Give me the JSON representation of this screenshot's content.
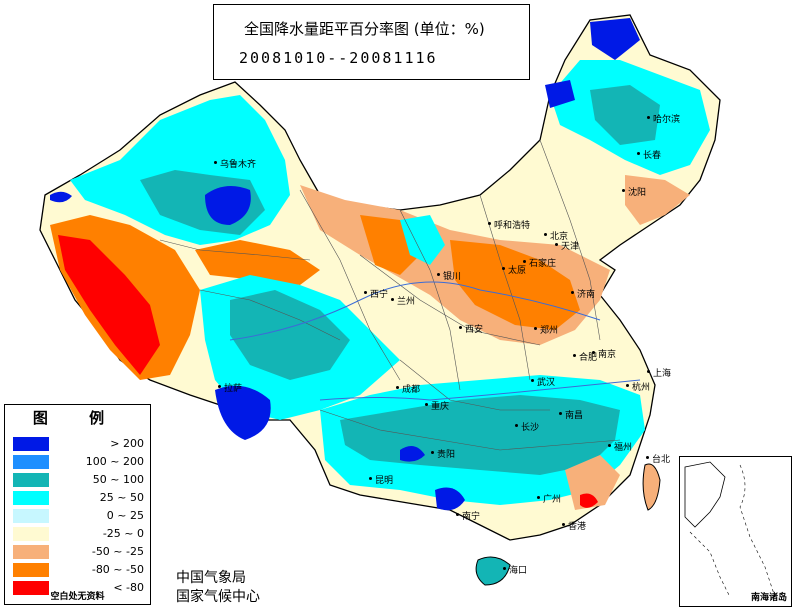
{
  "title": {
    "main": "全国降水量距平百分率图 (单位：%)",
    "date_range": "20081010--20081116"
  },
  "legend": {
    "title": "图 例",
    "items": [
      {
        "color": "#0019e6",
        "label": "> 200"
      },
      {
        "color": "#1e8fff",
        "label": "100 ~ 200"
      },
      {
        "color": "#13b5b5",
        "label": "50 ~ 100"
      },
      {
        "color": "#00ffff",
        "label": "25 ~ 50"
      },
      {
        "color": "#c7f7ff",
        "label": "0 ~ 25"
      },
      {
        "color": "#fffad2",
        "label": "-25 ~ 0"
      },
      {
        "color": "#f7b07a",
        "label": "-50 ~ -25"
      },
      {
        "color": "#ff8000",
        "label": "-80 ~ -50"
      },
      {
        "color": "#ff0000",
        "label": "< -80"
      }
    ],
    "note": "空白处无资料"
  },
  "credits": {
    "line1": "中国气象局",
    "line2": "国家气候中心"
  },
  "inset": {
    "label": "南海诸岛"
  },
  "cities": {
    "wulumuqi": "乌鲁木齐",
    "haerbin": "哈尔滨",
    "changchun": "长春",
    "shenyang": "沈阳",
    "huhehaote": "呼和浩特",
    "beijing": "北京",
    "tianjin": "天津",
    "yinchuan": "银川",
    "taiyuan": "太原",
    "shijiazhuang": "石家庄",
    "jinan": "济南",
    "xining": "西宁",
    "lanzhou": "兰州",
    "xian": "西安",
    "zhengzhou": "郑州",
    "hefei": "合肥",
    "nanjing": "南京",
    "shanghai": "上海",
    "lasa": "拉萨",
    "chengdu": "成都",
    "chongqing": "重庆",
    "wuhan": "武汉",
    "hangzhou": "杭州",
    "nanchang": "南昌",
    "changsha": "长沙",
    "guiyang": "贵阳",
    "kunming": "昆明",
    "fuzhou": "福州",
    "taibei": "台北",
    "guangzhou": "广州",
    "nanning": "南宁",
    "xianggang": "香港",
    "haikou": "海口"
  },
  "colors": {
    "border": "#000000",
    "background": "#ffffff"
  }
}
